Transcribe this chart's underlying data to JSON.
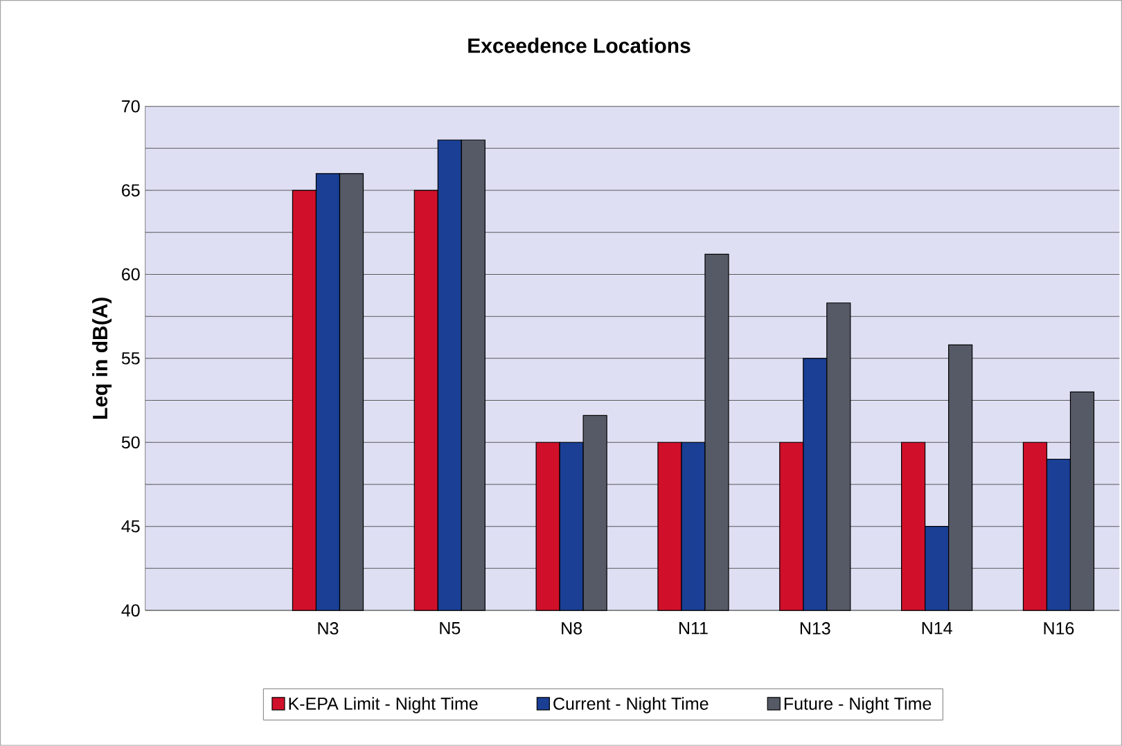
{
  "chart_data": {
    "type": "bar",
    "title": "Exceedence Locations",
    "ylabel": "Leq in dB(A)",
    "categories": [
      null,
      "N3",
      "N5",
      "N8",
      "N11",
      "N13",
      "N14",
      "N16"
    ],
    "series": [
      {
        "name": "K-EPA Limit - Night Time",
        "color": "#d0102a",
        "values": [
          null,
          65,
          65,
          50,
          50,
          50,
          50,
          50
        ]
      },
      {
        "name": "Current - Night Time",
        "color": "#1a3f94",
        "values": [
          null,
          66,
          68,
          50,
          50,
          55,
          45,
          49
        ]
      },
      {
        "name": "Future - Night Time",
        "color": "#555a66",
        "values": [
          null,
          66,
          68,
          51.6,
          61.2,
          58.3,
          55.8,
          53
        ]
      }
    ],
    "ylim": [
      40,
      70
    ],
    "yticks": [
      40,
      {
        "value": 42.5,
        "label": null
      },
      45,
      {
        "value": 47.5,
        "label": null
      },
      50,
      {
        "value": 52.5,
        "label": null
      },
      55,
      {
        "value": 57.5,
        "label": null
      },
      60,
      {
        "value": 62.5,
        "label": null
      },
      65,
      {
        "value": 67.5,
        "label": null
      },
      70
    ],
    "grid": "y",
    "legend": "bottom"
  }
}
